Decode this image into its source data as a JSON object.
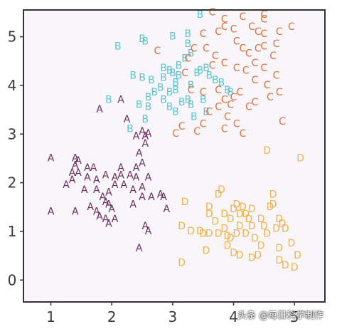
{
  "chart_data": {
    "type": "scatter",
    "title": "",
    "xlabel": "",
    "ylabel": "",
    "xlim": [
      0.55,
      5.5
    ],
    "ylim": [
      -0.45,
      5.55
    ],
    "xticks": [
      "1",
      "2",
      "3",
      "4",
      "5"
    ],
    "yticks": [
      "0",
      "1",
      "2",
      "3",
      "4",
      "5"
    ],
    "grid": false,
    "legend": "none",
    "series": [
      {
        "label": "A",
        "color": "#6b2f5f",
        "points": [
          [
            1.0,
            2.5
          ],
          [
            1.4,
            2.5
          ],
          [
            1.45,
            2.45
          ],
          [
            1.4,
            2.35
          ],
          [
            1.35,
            2.2
          ],
          [
            1.45,
            2.2
          ],
          [
            1.6,
            2.3
          ],
          [
            1.7,
            2.3
          ],
          [
            1.6,
            2.1
          ],
          [
            1.75,
            2.05
          ],
          [
            1.9,
            2.15
          ],
          [
            2.05,
            2.1
          ],
          [
            2.15,
            2.15
          ],
          [
            2.3,
            2.15
          ],
          [
            2.4,
            2.1
          ],
          [
            2.6,
            2.1
          ],
          [
            2.4,
            2.3
          ],
          [
            2.5,
            2.4
          ],
          [
            2.45,
            2.6
          ],
          [
            2.55,
            2.8
          ],
          [
            2.55,
            2.95
          ],
          [
            2.4,
            2.95
          ],
          [
            2.25,
            3.3
          ],
          [
            2.5,
            3.05
          ],
          [
            2.6,
            3.0
          ],
          [
            2.05,
            1.95
          ],
          [
            2.2,
            1.95
          ],
          [
            2.5,
            1.9
          ],
          [
            2.35,
            1.85
          ],
          [
            1.55,
            1.85
          ],
          [
            1.75,
            1.85
          ],
          [
            1.95,
            1.8
          ],
          [
            1.85,
            1.7
          ],
          [
            1.9,
            1.6
          ],
          [
            1.65,
            1.5
          ],
          [
            1.75,
            1.4
          ],
          [
            1.95,
            1.55
          ],
          [
            2.5,
            1.7
          ],
          [
            2.65,
            1.7
          ],
          [
            2.35,
            1.55
          ],
          [
            2.8,
            1.75
          ],
          [
            2.85,
            1.7
          ],
          [
            2.9,
            1.45
          ],
          [
            1.0,
            1.4
          ],
          [
            1.4,
            1.4
          ],
          [
            1.8,
            1.3
          ],
          [
            1.9,
            1.25
          ],
          [
            1.95,
            1.15
          ],
          [
            2.0,
            1.45
          ],
          [
            2.05,
            1.25
          ],
          [
            2.55,
            1.1
          ],
          [
            2.6,
            1.0
          ],
          [
            2.45,
            0.65
          ],
          [
            2.15,
            3.7
          ],
          [
            1.8,
            3.5
          ],
          [
            1.25,
            1.95
          ],
          [
            1.35,
            2.05
          ],
          [
            2.15,
            2.3
          ]
        ]
      },
      {
        "label": "B",
        "color": "#5cc4cc",
        "points": [
          [
            1.95,
            3.7
          ],
          [
            2.1,
            4.8
          ],
          [
            2.5,
            4.95
          ],
          [
            2.55,
            4.9
          ],
          [
            2.35,
            4.2
          ],
          [
            2.5,
            4.15
          ],
          [
            2.65,
            4.1
          ],
          [
            2.7,
            3.85
          ],
          [
            2.8,
            3.95
          ],
          [
            2.85,
            4.15
          ],
          [
            2.95,
            4.3
          ],
          [
            3.0,
            4.25
          ],
          [
            3.05,
            4.05
          ],
          [
            3.05,
            3.9
          ],
          [
            2.95,
            3.85
          ],
          [
            2.85,
            3.7
          ],
          [
            2.6,
            3.75
          ],
          [
            2.6,
            3.55
          ],
          [
            2.95,
            3.55
          ],
          [
            3.15,
            3.65
          ],
          [
            3.25,
            3.7
          ],
          [
            3.3,
            3.6
          ],
          [
            3.5,
            3.7
          ],
          [
            3.1,
            4.4
          ],
          [
            3.2,
            4.55
          ],
          [
            3.3,
            4.65
          ],
          [
            3.25,
            4.85
          ],
          [
            3.25,
            5.05
          ],
          [
            3.45,
            5.45
          ],
          [
            3.45,
            4.3
          ],
          [
            3.55,
            4.35
          ],
          [
            3.6,
            4.2
          ],
          [
            3.7,
            4.1
          ],
          [
            3.8,
            4.05
          ],
          [
            3.9,
            3.9
          ],
          [
            3.95,
            3.85
          ],
          [
            3.35,
            3.35
          ],
          [
            3.55,
            3.45
          ],
          [
            2.45,
            3.6
          ],
          [
            3.05,
            3.45
          ],
          [
            3.0,
            5.0
          ],
          [
            2.85,
            4.35
          ],
          [
            2.55,
            3.3
          ],
          [
            2.3,
            3.1
          ],
          [
            3.4,
            4.25
          ],
          [
            3.1,
            4.2
          ],
          [
            3.3,
            4.0
          ]
        ]
      },
      {
        "label": "C",
        "color": "#e0703a",
        "points": [
          [
            3.65,
            5.5
          ],
          [
            3.85,
            5.35
          ],
          [
            4.15,
            5.4
          ],
          [
            4.5,
            5.45
          ],
          [
            4.5,
            5.35
          ],
          [
            4.3,
            5.2
          ],
          [
            4.4,
            5.1
          ],
          [
            4.5,
            5.05
          ],
          [
            4.75,
            5.1
          ],
          [
            4.95,
            5.2
          ],
          [
            4.7,
            4.85
          ],
          [
            3.5,
            5.05
          ],
          [
            3.75,
            5.1
          ],
          [
            3.85,
            5.2
          ],
          [
            4.0,
            5.15
          ],
          [
            4.05,
            4.9
          ],
          [
            4.15,
            4.75
          ],
          [
            4.25,
            4.65
          ],
          [
            4.4,
            4.75
          ],
          [
            4.5,
            4.8
          ],
          [
            3.35,
            4.75
          ],
          [
            3.55,
            4.75
          ],
          [
            3.7,
            4.6
          ],
          [
            3.85,
            4.45
          ],
          [
            4.05,
            4.35
          ],
          [
            4.2,
            4.3
          ],
          [
            4.35,
            4.1
          ],
          [
            4.55,
            4.0
          ],
          [
            4.7,
            4.2
          ],
          [
            4.75,
            3.85
          ],
          [
            4.6,
            3.75
          ],
          [
            4.35,
            3.65
          ],
          [
            4.1,
            3.85
          ],
          [
            4.0,
            3.75
          ],
          [
            3.85,
            3.7
          ],
          [
            3.75,
            3.55
          ],
          [
            3.6,
            3.45
          ],
          [
            3.9,
            3.35
          ],
          [
            4.05,
            3.2
          ],
          [
            3.85,
            3.1
          ],
          [
            3.5,
            3.2
          ],
          [
            3.4,
            3.05
          ],
          [
            3.15,
            3.15
          ],
          [
            3.05,
            3.0
          ],
          [
            3.5,
            3.85
          ],
          [
            3.3,
            3.9
          ],
          [
            4.15,
            3.0
          ],
          [
            4.5,
            4.35
          ],
          [
            4.65,
            4.6
          ],
          [
            4.8,
            3.25
          ],
          [
            4.35,
            4.45
          ],
          [
            3.25,
            4.55
          ],
          [
            3.2,
            4.25
          ],
          [
            3.65,
            4.4
          ],
          [
            2.75,
            4.7
          ],
          [
            4.25,
            3.55
          ],
          [
            3.95,
            3.6
          ],
          [
            3.75,
            3.9
          ]
        ]
      },
      {
        "label": "D",
        "color": "#f0b24a",
        "points": [
          [
            4.55,
            2.65
          ],
          [
            5.1,
            2.5
          ],
          [
            3.2,
            1.6
          ],
          [
            3.75,
            1.75
          ],
          [
            3.8,
            1.85
          ],
          [
            4.05,
            1.55
          ],
          [
            4.0,
            1.45
          ],
          [
            4.1,
            1.35
          ],
          [
            4.15,
            1.5
          ],
          [
            4.2,
            1.35
          ],
          [
            3.95,
            1.25
          ],
          [
            4.1,
            1.1
          ],
          [
            4.25,
            1.25
          ],
          [
            4.3,
            1.45
          ],
          [
            4.45,
            1.25
          ],
          [
            4.6,
            1.5
          ],
          [
            4.65,
            1.55
          ],
          [
            4.5,
            1.1
          ],
          [
            4.7,
            1.05
          ],
          [
            4.75,
            1.25
          ],
          [
            4.8,
            1.15
          ],
          [
            4.85,
            1.05
          ],
          [
            3.15,
            1.1
          ],
          [
            3.5,
            0.95
          ],
          [
            3.6,
            0.95
          ],
          [
            3.75,
            0.95
          ],
          [
            3.85,
            1.05
          ],
          [
            3.95,
            0.85
          ],
          [
            4.05,
            0.95
          ],
          [
            3.9,
            0.9
          ],
          [
            3.3,
            1.0
          ],
          [
            3.45,
            1.0
          ],
          [
            4.2,
            0.95
          ],
          [
            4.35,
            0.85
          ],
          [
            4.45,
            0.7
          ],
          [
            4.55,
            0.95
          ],
          [
            4.75,
            0.65
          ],
          [
            4.95,
            0.75
          ],
          [
            5.05,
            0.5
          ],
          [
            4.0,
            0.55
          ],
          [
            4.1,
            0.5
          ],
          [
            4.3,
            0.45
          ],
          [
            4.75,
            0.4
          ],
          [
            4.85,
            0.3
          ],
          [
            5.0,
            0.25
          ],
          [
            3.6,
            1.35
          ],
          [
            3.7,
            1.2
          ],
          [
            3.15,
            0.35
          ],
          [
            3.55,
            0.6
          ],
          [
            3.9,
            0.7
          ],
          [
            4.65,
            1.75
          ],
          [
            3.6,
            1.5
          ],
          [
            4.4,
            0.5
          ],
          [
            3.85,
            1.35
          ],
          [
            4.3,
            1.1
          ]
        ]
      }
    ]
  },
  "watermark": "头条 @每日科学制作"
}
